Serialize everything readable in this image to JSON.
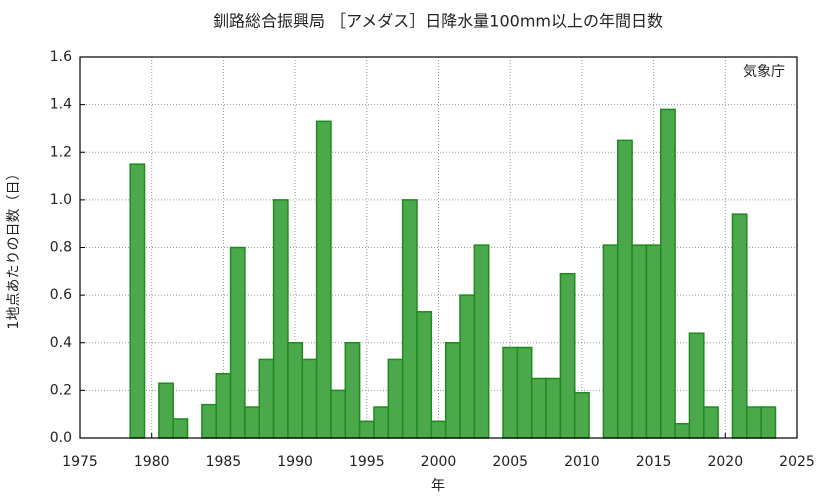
{
  "chart_data": {
    "type": "bar",
    "title": "釧路総合振興局 ［アメダス］日降水量100mm以上の年間日数",
    "annotation": "気象庁",
    "x_label": "年",
    "y_label": "1地点あたりの日数（日）",
    "x": [
      1976,
      1977,
      1978,
      1979,
      1980,
      1981,
      1982,
      1983,
      1984,
      1985,
      1986,
      1987,
      1988,
      1989,
      1990,
      1991,
      1992,
      1993,
      1994,
      1995,
      1996,
      1997,
      1998,
      1999,
      2000,
      2001,
      2002,
      2003,
      2004,
      2005,
      2006,
      2007,
      2008,
      2009,
      2010,
      2011,
      2012,
      2013,
      2014,
      2015,
      2016,
      2017,
      2018,
      2019,
      2020,
      2021,
      2022,
      2023
    ],
    "values": [
      0,
      0,
      0,
      1.15,
      0,
      0.23,
      0.08,
      0,
      0.14,
      0.27,
      0.8,
      0.13,
      0.33,
      1.0,
      0.4,
      0.33,
      1.33,
      0.2,
      0.4,
      0.07,
      0.13,
      0.33,
      1.0,
      0.53,
      0.07,
      0.4,
      0.6,
      0.81,
      0,
      0.38,
      0.38,
      0.25,
      0.25,
      0.69,
      0.19,
      0,
      0.81,
      1.25,
      0.81,
      0.81,
      1.38,
      0.06,
      0.44,
      0.13,
      0,
      0.94,
      0.13,
      0.13
    ],
    "color": "#4ba84b",
    "edge_color": "#1f8a1f",
    "xlim": [
      1975,
      2025
    ],
    "xticks": [
      1975,
      1980,
      1985,
      1990,
      1995,
      2000,
      2005,
      2010,
      2015,
      2020,
      2025
    ],
    "ylim": [
      0,
      1.6
    ],
    "yticks": [
      {
        "value": 0,
        "label": "0.0"
      },
      0.2,
      0.4,
      0.6,
      0.8,
      {
        "value": 1,
        "label": "1.0"
      },
      1.2,
      1.4,
      1.6
    ],
    "grid": true
  }
}
